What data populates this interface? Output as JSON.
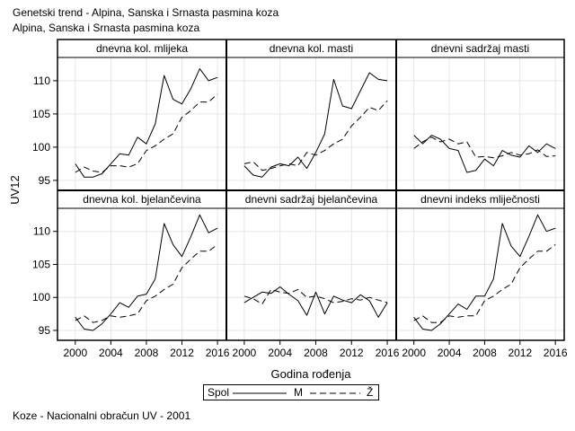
{
  "header": {
    "title": "Genetski trend - Alpina, Sanska i Srnasta pasmina koza",
    "subtitle": "Alpina, Sanska i Srnasta pasmina koza"
  },
  "footnote": "Koze - Nacionalni obračun UV - 2001",
  "legend": {
    "title": "Spol",
    "entries": [
      {
        "label": "M",
        "style": "solid"
      },
      {
        "label": "Ž",
        "style": "dashed"
      }
    ]
  },
  "chart_data": {
    "type": "line",
    "xlabel": "Godina rođenja",
    "ylabel": "UV12",
    "x_ticks": [
      2000,
      2004,
      2008,
      2012,
      2016
    ],
    "y_ticks": [
      95,
      100,
      105,
      110
    ],
    "xlim": [
      1998,
      2017
    ],
    "ylim": [
      93.5,
      113.5
    ],
    "grid": true,
    "legend_position": "bottom",
    "x": [
      2000,
      2001,
      2002,
      2003,
      2004,
      2005,
      2006,
      2007,
      2008,
      2009,
      2010,
      2011,
      2012,
      2013,
      2014,
      2015,
      2016
    ],
    "panels": [
      {
        "title": "dnevna kol. mlijeka",
        "series": [
          {
            "name": "M",
            "values": [
              97.5,
              95.5,
              95.5,
              96.0,
              97.5,
              99.0,
              98.8,
              101.5,
              100.5,
              103.5,
              110.8,
              107.2,
              106.5,
              108.8,
              111.8,
              110.0,
              110.5
            ]
          },
          {
            "name": "Ž",
            "values": [
              96.2,
              97.0,
              96.4,
              96.2,
              97.2,
              97.2,
              97.0,
              97.5,
              99.5,
              100.2,
              101.2,
              102.0,
              104.5,
              105.5,
              106.8,
              106.8,
              108.0
            ]
          }
        ]
      },
      {
        "title": "dnevna kol. masti",
        "series": [
          {
            "name": "M",
            "values": [
              97.2,
              95.8,
              95.5,
              97.0,
              97.5,
              97.2,
              98.5,
              96.8,
              99.2,
              102.0,
              110.2,
              106.2,
              105.8,
              108.5,
              111.2,
              110.2,
              110.0
            ]
          },
          {
            "name": "Ž",
            "values": [
              97.5,
              97.8,
              96.5,
              96.8,
              97.2,
              97.5,
              97.2,
              99.2,
              98.8,
              99.5,
              100.5,
              101.2,
              103.2,
              104.5,
              106.0,
              105.5,
              107.0
            ]
          }
        ]
      },
      {
        "title": "dnevni sadržaj masti",
        "series": [
          {
            "name": "M",
            "values": [
              101.8,
              100.5,
              101.8,
              101.2,
              99.8,
              99.5,
              96.2,
              96.5,
              98.2,
              97.2,
              99.5,
              98.8,
              98.5,
              100.2,
              99.2,
              100.5,
              99.8
            ]
          },
          {
            "name": "Ž",
            "values": [
              99.8,
              100.8,
              101.5,
              100.8,
              101.2,
              100.5,
              100.8,
              98.5,
              98.6,
              98.4,
              98.7,
              99.2,
              98.8,
              99.0,
              99.6,
              98.6,
              98.7
            ]
          }
        ]
      },
      {
        "title": "dnevna kol. bjelančevina",
        "series": [
          {
            "name": "M",
            "values": [
              97.0,
              95.2,
              95.0,
              96.0,
              97.5,
              99.2,
              98.5,
              100.2,
              100.5,
              102.8,
              111.2,
              108.0,
              106.2,
              109.2,
              112.5,
              109.8,
              110.5
            ]
          },
          {
            "name": "Ž",
            "values": [
              96.5,
              97.2,
              96.2,
              96.5,
              97.2,
              97.0,
              97.2,
              97.5,
              99.5,
              100.2,
              101.2,
              102.0,
              104.5,
              105.8,
              107.0,
              107.0,
              108.0
            ]
          }
        ]
      },
      {
        "title": "dnevni sadržaj bjelančevina",
        "series": [
          {
            "name": "M",
            "values": [
              99.2,
              100.0,
              100.8,
              100.6,
              101.6,
              100.5,
              99.5,
              97.3,
              100.8,
              97.5,
              100.2,
              99.6,
              99.2,
              100.4,
              99.5,
              97.0,
              99.2
            ]
          },
          {
            "name": "Ž",
            "values": [
              100.2,
              99.8,
              99.0,
              101.2,
              100.8,
              100.6,
              101.2,
              100.0,
              100.2,
              99.8,
              99.2,
              99.4,
              99.8,
              99.6,
              100.0,
              99.6,
              99.2
            ]
          }
        ]
      },
      {
        "title": "dnevni indeks mliječnosti",
        "series": [
          {
            "name": "M",
            "values": [
              97.0,
              95.2,
              95.0,
              96.0,
              97.5,
              99.0,
              98.2,
              100.2,
              100.2,
              102.8,
              111.2,
              107.8,
              106.2,
              109.2,
              112.5,
              110.0,
              110.5
            ]
          },
          {
            "name": "Ž",
            "values": [
              96.5,
              97.2,
              96.2,
              96.2,
              97.2,
              97.0,
              97.2,
              97.2,
              99.5,
              100.2,
              101.2,
              102.0,
              104.5,
              105.8,
              107.0,
              107.0,
              108.0
            ]
          }
        ]
      }
    ]
  }
}
